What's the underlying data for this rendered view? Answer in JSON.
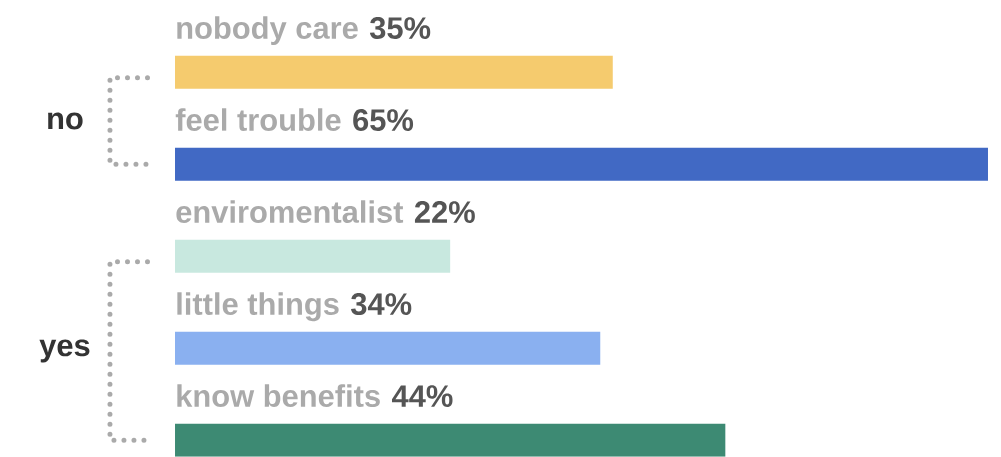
{
  "chart_data": {
    "type": "bar",
    "orientation": "horizontal",
    "categories": [
      "nobody care",
      "feel trouble",
      "enviromentalist",
      "little things",
      "know benefits"
    ],
    "values": [
      35,
      65,
      22,
      34,
      44
    ],
    "value_labels": [
      "35%",
      "65%",
      "22%",
      "34%",
      "44%"
    ],
    "colors": [
      "#f5cb6e",
      "#4169c4",
      "#c8e8df",
      "#8ab0f0",
      "#3d8a73"
    ],
    "annotations": [
      "no",
      "yes"
    ]
  }
}
